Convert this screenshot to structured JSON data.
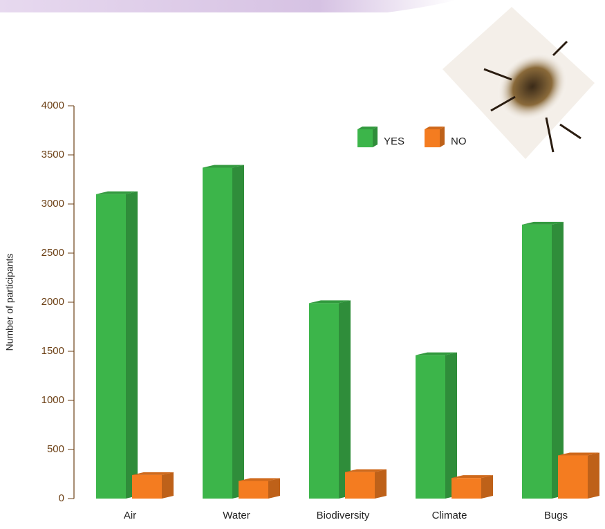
{
  "chart_data": {
    "type": "bar3d",
    "y_label": "Number of participants",
    "categories": [
      "Air",
      "Water",
      "Biodiversity",
      "Climate",
      "Bugs"
    ],
    "series": [
      {
        "name": "YES",
        "color": "#3cb54a",
        "values": [
          3100,
          3370,
          1990,
          1460,
          2790
        ]
      },
      {
        "name": "NO",
        "color": "#f47c20",
        "values": [
          240,
          180,
          270,
          210,
          440
        ]
      }
    ],
    "ylim": [
      0,
      4000
    ],
    "yticks": [
      0,
      500,
      1000,
      1500,
      2000,
      2500,
      3000,
      3500,
      4000
    ],
    "legend": "top-right"
  }
}
